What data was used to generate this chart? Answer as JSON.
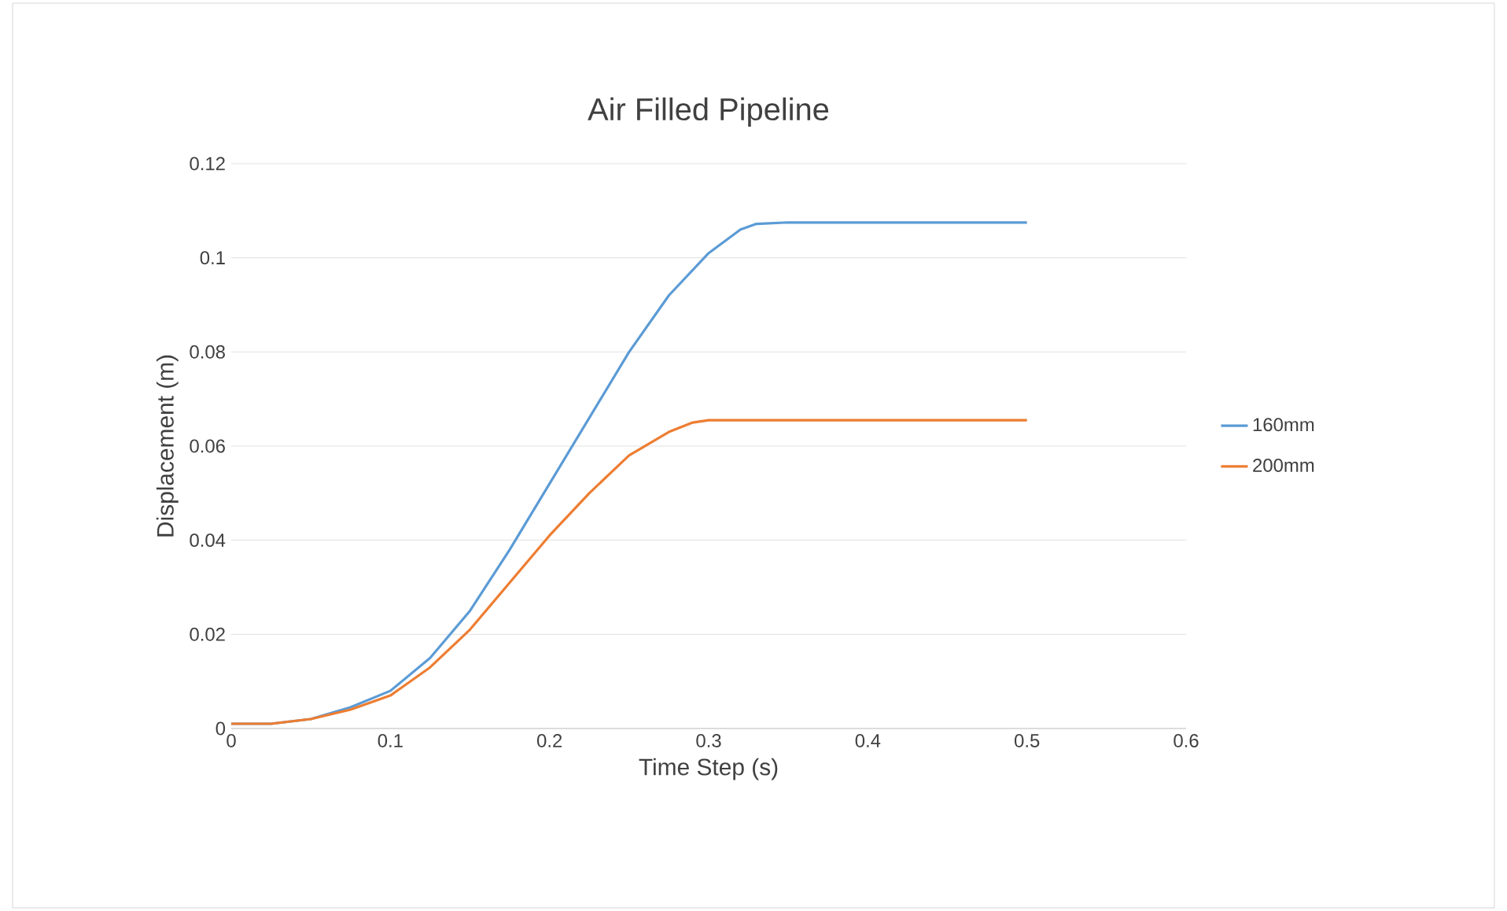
{
  "chart_data": {
    "type": "line",
    "title": "Air Filled Pipeline",
    "xlabel": "Time Step (s)",
    "ylabel": "Displacement (m)",
    "xlim": [
      0,
      0.6
    ],
    "ylim": [
      0,
      0.12
    ],
    "xticks": [
      0,
      0.1,
      0.2,
      0.3,
      0.4,
      0.5,
      0.6
    ],
    "yticks": [
      0,
      0.02,
      0.04,
      0.06,
      0.08,
      0.1,
      0.12
    ],
    "grid": "y",
    "legend": "right",
    "marker": "none",
    "line_style": "solid",
    "series": [
      {
        "name": "160mm",
        "color": "#5b9bd5",
        "x": [
          0,
          0.025,
          0.05,
          0.075,
          0.1,
          0.125,
          0.15,
          0.175,
          0.2,
          0.225,
          0.25,
          0.275,
          0.3,
          0.32,
          0.33,
          0.35,
          0.5
        ],
        "values": [
          0.001,
          0.001,
          0.002,
          0.0045,
          0.008,
          0.015,
          0.025,
          0.038,
          0.052,
          0.066,
          0.08,
          0.092,
          0.101,
          0.106,
          0.1072,
          0.1075,
          0.1075
        ]
      },
      {
        "name": "200mm",
        "color": "#ed7d31",
        "x": [
          0,
          0.025,
          0.05,
          0.075,
          0.1,
          0.125,
          0.15,
          0.175,
          0.2,
          0.225,
          0.25,
          0.275,
          0.29,
          0.3,
          0.5
        ],
        "values": [
          0.001,
          0.001,
          0.002,
          0.004,
          0.007,
          0.013,
          0.021,
          0.031,
          0.041,
          0.05,
          0.058,
          0.063,
          0.065,
          0.0655,
          0.0655
        ]
      }
    ]
  }
}
